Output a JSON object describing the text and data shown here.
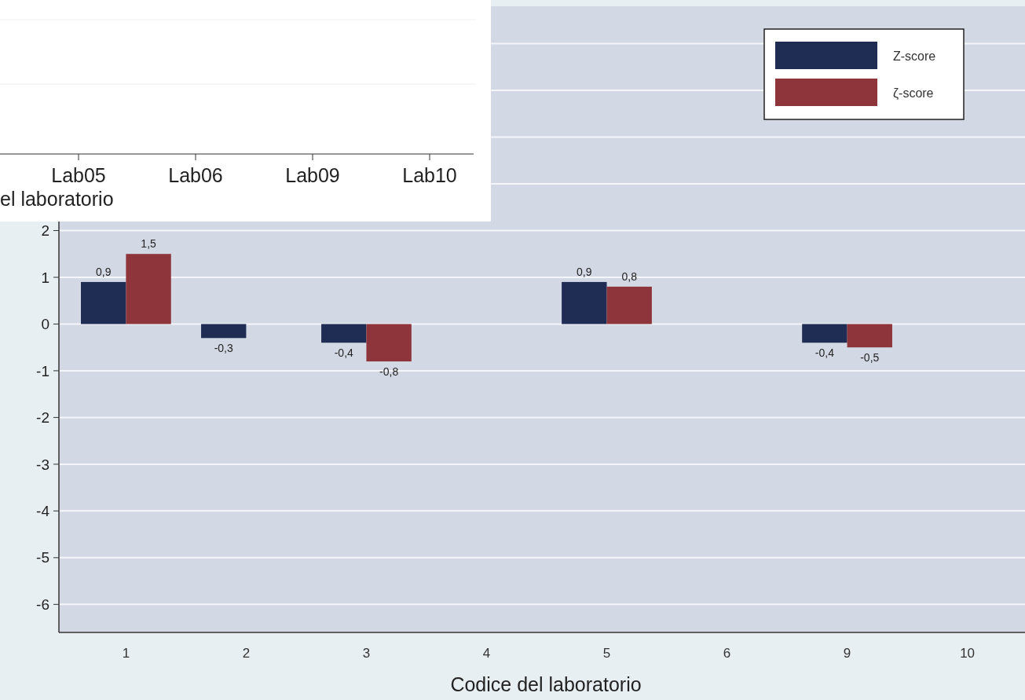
{
  "chart_data": [
    {
      "type": "bar",
      "categories": [
        "1",
        "2",
        "3",
        "4",
        "5",
        "6",
        "9",
        "10"
      ],
      "series": [
        {
          "name": "Z-score",
          "color": "#1f2d54",
          "values": [
            0.9,
            -0.3,
            -0.4,
            null,
            0.9,
            null,
            -0.4,
            null
          ],
          "value_labels": [
            "0,9",
            "-0,3",
            "-0,4",
            null,
            "0,9",
            null,
            "-0,4",
            null
          ]
        },
        {
          "name": "ζ-score",
          "color": "#8e353c",
          "values": [
            1.5,
            null,
            -0.8,
            null,
            0.8,
            null,
            -0.5,
            null
          ],
          "value_labels": [
            "1,5",
            null,
            "-0,8",
            null,
            "0,8",
            null,
            "-0,5",
            null
          ]
        }
      ],
      "xlabel": "Codice del laboratorio",
      "ylim": [
        -6.6,
        6.8
      ],
      "yticks": [
        -6,
        -5,
        -4,
        -3,
        -2,
        -1,
        0,
        1,
        2,
        {
          "value": 3,
          "label": null
        },
        {
          "value": 4,
          "label": null
        },
        {
          "value": 5,
          "label": null
        },
        {
          "value": 6,
          "label": null
        }
      ],
      "grid": "y",
      "legend": "top right"
    },
    {
      "type": "other",
      "categories": [
        "Lab05",
        "Lab06",
        "Lab09",
        "Lab10"
      ],
      "xlabel": "el laboratorio"
    }
  ]
}
